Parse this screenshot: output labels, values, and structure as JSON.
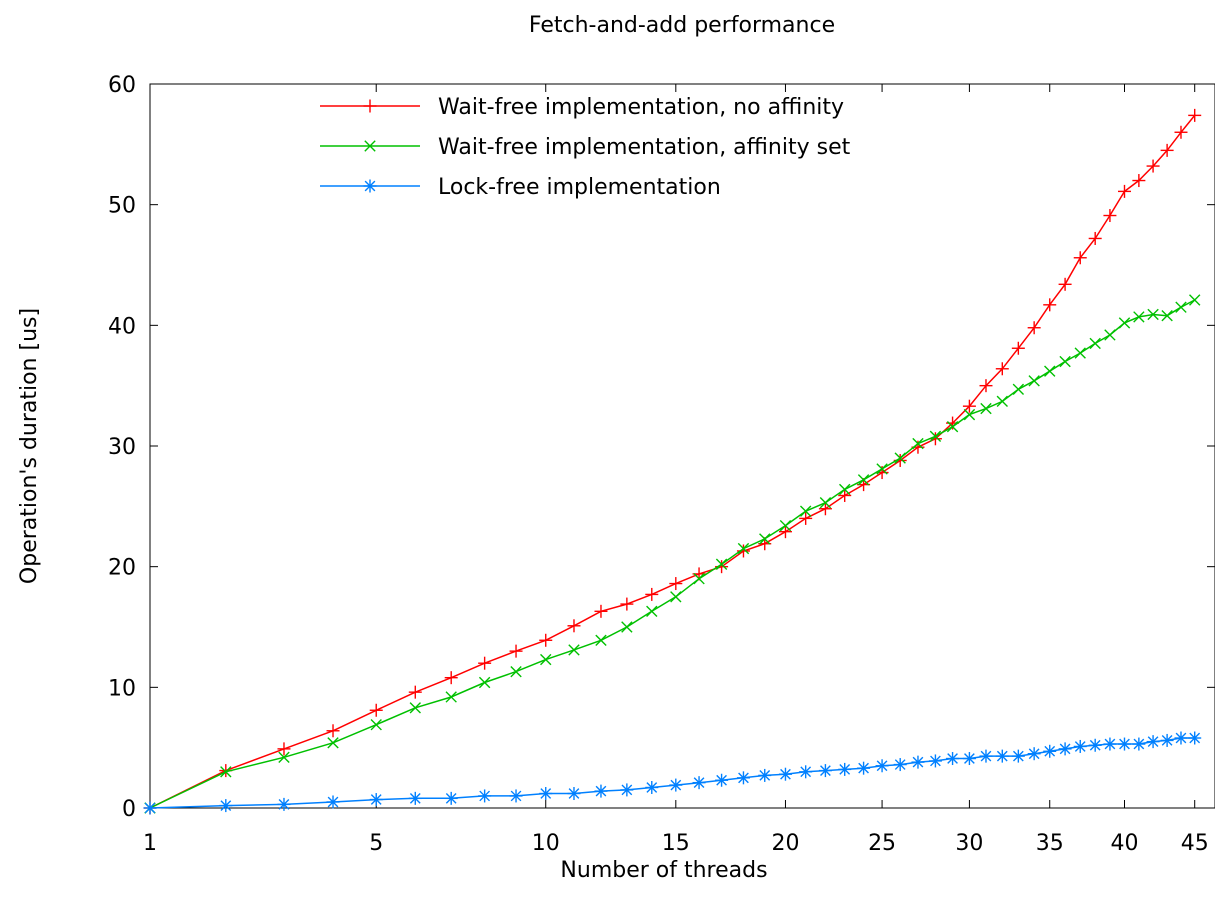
{
  "chart_data": {
    "type": "line",
    "title": "Fetch-and-add performance",
    "xlabel": "Number of threads",
    "ylabel": "Operation's duration [us]",
    "x_scale": "sqrt",
    "xlim": [
      1,
      46.5
    ],
    "ylim": [
      0,
      60
    ],
    "x_ticks": [
      1,
      5,
      10,
      15,
      20,
      25,
      30,
      35,
      40,
      45
    ],
    "y_ticks": [
      0,
      10,
      20,
      30,
      40,
      50,
      60
    ],
    "grid": false,
    "legend_position": "top-center",
    "x": [
      1,
      2,
      3,
      4,
      5,
      6,
      7,
      8,
      9,
      10,
      11,
      12,
      13,
      14,
      15,
      16,
      17,
      18,
      19,
      20,
      21,
      22,
      23,
      24,
      25,
      26,
      27,
      28,
      29,
      30,
      31,
      32,
      33,
      34,
      35,
      36,
      37,
      38,
      39,
      40,
      41,
      42,
      43,
      44,
      45
    ],
    "series": [
      {
        "name": "Wait-free implementation, no affinity",
        "color": "#ff0000",
        "marker": "plus",
        "values": [
          0,
          3.1,
          4.9,
          6.4,
          8.1,
          9.6,
          10.8,
          12.0,
          13.0,
          13.9,
          15.1,
          16.3,
          16.9,
          17.7,
          18.6,
          19.4,
          20.0,
          21.3,
          21.9,
          22.9,
          24.0,
          24.8,
          25.9,
          26.8,
          27.8,
          28.8,
          29.9,
          30.6,
          31.9,
          33.3,
          35.0,
          36.4,
          38.1,
          39.8,
          41.7,
          43.4,
          45.6,
          47.2,
          49.1,
          51.1,
          52.0,
          53.2,
          54.5,
          56.0,
          57.4
        ]
      },
      {
        "name": "Wait-free implementation, affinity set",
        "color": "#00c000",
        "marker": "cross",
        "values": [
          0,
          3.0,
          4.2,
          5.4,
          6.9,
          8.3,
          9.2,
          10.4,
          11.3,
          12.3,
          13.1,
          13.9,
          15.0,
          16.3,
          17.5,
          19.0,
          20.2,
          21.5,
          22.3,
          23.4,
          24.6,
          25.3,
          26.4,
          27.2,
          28.1,
          29.0,
          30.2,
          30.8,
          31.6,
          32.6,
          33.1,
          33.7,
          34.7,
          35.4,
          36.2,
          37.0,
          37.7,
          38.5,
          39.2,
          40.2,
          40.7,
          40.9,
          40.8,
          41.5,
          42.1
        ]
      },
      {
        "name": "Lock-free implementation",
        "color": "#0080ff",
        "marker": "star",
        "values": [
          0,
          0.2,
          0.3,
          0.5,
          0.7,
          0.8,
          0.8,
          1.0,
          1.0,
          1.2,
          1.2,
          1.4,
          1.5,
          1.7,
          1.9,
          2.1,
          2.3,
          2.5,
          2.7,
          2.8,
          3.0,
          3.1,
          3.2,
          3.3,
          3.5,
          3.6,
          3.8,
          3.9,
          4.1,
          4.1,
          4.3,
          4.3,
          4.3,
          4.5,
          4.7,
          4.9,
          5.1,
          5.2,
          5.3,
          5.3,
          5.3,
          5.5,
          5.6,
          5.8,
          5.8
        ]
      }
    ]
  }
}
